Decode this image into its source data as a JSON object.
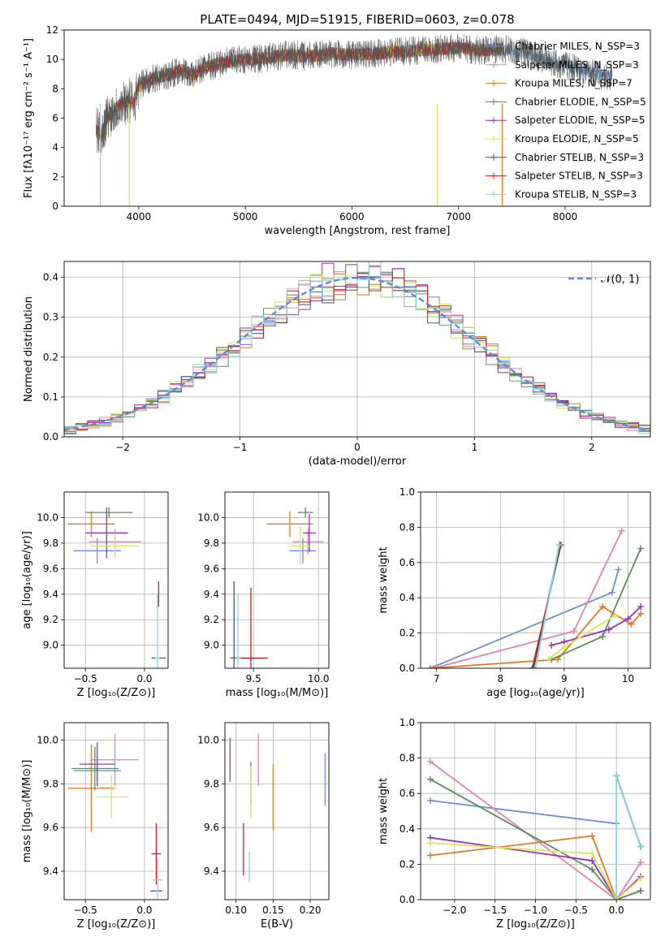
{
  "figure_title": "PLATE=0494, MJD=51915, FIBERID=0603, z=0.078",
  "colors": {
    "ch_miles": "#6a8fd8",
    "sa_miles": "#e57fb3",
    "kr_miles": "#e07820",
    "ch_elodie": "#5a8a60",
    "sa_elodie": "#9b30b8",
    "kr_elodie": "#d9e55a",
    "ch_stelib": "#555555",
    "sa_stelib": "#c02020",
    "kr_stelib": "#80d8e0",
    "gaussian": "#5b8ad6"
  },
  "chart_data": [
    {
      "id": "spectrum",
      "type": "line",
      "title": "PLATE=0494, MJD=51915, FIBERID=0603, z=0.078",
      "xlabel": "wavelength [Angstrom, rest frame]",
      "ylabel": "Flux [fλ10⁻¹⁷ erg cm⁻² s⁻¹ A⁻¹]",
      "xlim": [
        3300,
        8800
      ],
      "ylim": [
        0,
        12
      ],
      "xticks": [
        4000,
        5000,
        6000,
        7000,
        8000
      ],
      "yticks": [
        0,
        2,
        4,
        6,
        8,
        10,
        12
      ],
      "grid": false,
      "legend": "right",
      "data_series": {
        "name": "data",
        "x": [
          3600,
          3650,
          3700,
          3750,
          3800,
          3900,
          3950,
          4000,
          4100,
          4200,
          4300,
          4400,
          4500,
          4600,
          4800,
          5000,
          5200,
          5400,
          5600,
          5800,
          6000,
          6200,
          6400,
          6600,
          6800,
          7000,
          7200,
          7400,
          7600,
          7800,
          8000,
          8200,
          8400
        ],
        "y": [
          5.2,
          4.8,
          6.0,
          6.4,
          6.8,
          7.2,
          7.0,
          8.2,
          8.6,
          8.8,
          9.0,
          9.3,
          8.9,
          9.4,
          9.8,
          10.0,
          10.1,
          10.3,
          10.2,
          10.4,
          10.3,
          10.4,
          10.5,
          10.6,
          10.7,
          10.8,
          10.6,
          10.7,
          10.5,
          10.0,
          9.6,
          9.2,
          8.8
        ]
      },
      "series": [
        {
          "name": "Chabrier MILES, N_SSP=3",
          "color_key": "ch_miles"
        },
        {
          "name": "Salpeter MILES, N_SSP=3",
          "color_key": "sa_miles"
        },
        {
          "name": "Kroupa MILES, N_SSP=7",
          "color_key": "kr_miles"
        },
        {
          "name": "Chabrier ELODIE, N_SSP=5",
          "color_key": "ch_elodie"
        },
        {
          "name": "Salpeter ELODIE, N_SSP=5",
          "color_key": "sa_elodie"
        },
        {
          "name": "Kroupa ELODIE, N_SSP=5",
          "color_key": "kr_elodie"
        },
        {
          "name": "Chabrier STELIB, N_SSP=3",
          "color_key": "ch_stelib"
        },
        {
          "name": "Salpeter STELIB, N_SSP=3",
          "color_key": "sa_stelib"
        },
        {
          "name": "Kroupa STELIB, N_SSP=3",
          "color_key": "kr_stelib"
        }
      ]
    },
    {
      "id": "residuals",
      "type": "line",
      "xlabel": "(data-model)/error",
      "ylabel": "Normed distribution",
      "xlim": [
        -2.5,
        2.5
      ],
      "ylim": [
        0,
        0.44
      ],
      "xticks": [
        -2,
        -1,
        0,
        1,
        2
      ],
      "yticks": [
        0.0,
        0.1,
        0.2,
        0.3,
        0.4
      ],
      "grid": true,
      "legend": "top-right",
      "gaussian_label": "𝒩(0, 1)",
      "bin_width": 0.1
    },
    {
      "id": "age_vs_z",
      "type": "scatter",
      "xlabel": "Z [log₁₀(Z/Z⊙)]",
      "ylabel": "age  [log₁₀(age/yr)]",
      "xlim": [
        -0.68,
        0.2
      ],
      "ylim": [
        8.82,
        10.2
      ],
      "xticks": [
        -0.5,
        0.0
      ],
      "yticks": [
        9.0,
        9.2,
        9.4,
        9.6,
        9.8,
        10.0
      ],
      "grid": true,
      "points": [
        {
          "color_key": "ch_miles",
          "x": -0.4,
          "y": 9.74,
          "xerr": 0.2,
          "yerr": 0.1
        },
        {
          "color_key": "sa_miles",
          "x": -0.25,
          "y": 9.81,
          "xerr": 0.22,
          "yerr": 0.1
        },
        {
          "color_key": "kr_miles",
          "x": -0.45,
          "y": 9.95,
          "xerr": 0.2,
          "yerr": 0.1
        },
        {
          "color_key": "ch_elodie",
          "x": -0.3,
          "y": 10.04,
          "xerr": 0.2,
          "yerr": 0.04
        },
        {
          "color_key": "sa_elodie",
          "x": -0.32,
          "y": 9.88,
          "xerr": 0.18,
          "yerr": 0.2
        },
        {
          "color_key": "kr_elodie",
          "x": -0.25,
          "y": 9.78,
          "xerr": 0.2,
          "yerr": 0.1
        },
        {
          "color_key": "ch_stelib",
          "x": 0.12,
          "y": 8.9,
          "xerr": 0.06,
          "yerr": 0.0
        },
        {
          "color_key": "sa_stelib",
          "x": 0.12,
          "y": 9.4,
          "xerr": 0.0,
          "yerr": 0.1
        },
        {
          "color_key": "kr_stelib",
          "x": 0.11,
          "y": 8.9,
          "xerr": 0.02,
          "yerr": 0.5
        }
      ]
    },
    {
      "id": "age_vs_mass",
      "type": "scatter",
      "xlabel": "mass [log₁₀(M/M⊙)]",
      "ylabel": "",
      "xlim": [
        9.28,
        10.08
      ],
      "ylim": [
        8.82,
        10.2
      ],
      "xticks": [
        9.5,
        10.0
      ],
      "yticks": [
        9.0,
        9.2,
        9.4,
        9.6,
        9.8,
        10.0
      ],
      "grid": true,
      "points": [
        {
          "color_key": "ch_miles",
          "x": 9.88,
          "y": 9.74,
          "xerr": 0.1,
          "yerr": 0.1
        },
        {
          "color_key": "sa_miles",
          "x": 9.92,
          "y": 9.81,
          "xerr": 0.12,
          "yerr": 0.1
        },
        {
          "color_key": "kr_miles",
          "x": 9.78,
          "y": 9.95,
          "xerr": 0.18,
          "yerr": 0.1
        },
        {
          "color_key": "ch_elodie",
          "x": 9.9,
          "y": 10.04,
          "xerr": 0.06,
          "yerr": 0.04
        },
        {
          "color_key": "sa_elodie",
          "x": 9.93,
          "y": 9.88,
          "xerr": 0.05,
          "yerr": 0.15
        },
        {
          "color_key": "kr_elodie",
          "x": 9.86,
          "y": 9.78,
          "xerr": 0.07,
          "yerr": 0.15
        },
        {
          "color_key": "ch_stelib",
          "x": 9.35,
          "y": 8.9,
          "xerr": 0.03,
          "yerr": 0.6
        },
        {
          "color_key": "sa_stelib",
          "x": 9.48,
          "y": 8.9,
          "xerr": 0.13,
          "yerr": 0.55
        },
        {
          "color_key": "kr_stelib",
          "x": 9.38,
          "y": 8.9,
          "xerr": 0.02,
          "yerr": 0.5
        }
      ]
    },
    {
      "id": "weight_vs_age",
      "type": "line",
      "xlabel": "age  [log₁₀(age/yr)]",
      "ylabel": "mass weight",
      "xlim": [
        6.75,
        10.35
      ],
      "ylim": [
        0,
        1
      ],
      "xticks": [
        7,
        8,
        9,
        10
      ],
      "yticks": [
        0.0,
        0.2,
        0.4,
        0.6,
        0.8,
        1.0
      ],
      "grid": true,
      "series": [
        {
          "color_key": "ch_miles",
          "x": [
            6.9,
            9.75,
            9.85
          ],
          "y": [
            0.0,
            0.43,
            0.56
          ]
        },
        {
          "color_key": "sa_miles",
          "x": [
            6.95,
            9.15,
            9.9
          ],
          "y": [
            0.0,
            0.21,
            0.78
          ]
        },
        {
          "color_key": "kr_miles",
          "x": [
            6.9,
            8.9,
            9.6,
            10.05,
            10.2
          ],
          "y": [
            0.0,
            0.05,
            0.35,
            0.25,
            0.31
          ]
        },
        {
          "color_key": "ch_elodie",
          "x": [
            8.8,
            9.6,
            10.2
          ],
          "y": [
            0.05,
            0.18,
            0.68
          ]
        },
        {
          "color_key": "sa_elodie",
          "x": [
            8.8,
            9.0,
            9.7,
            10.0,
            10.2
          ],
          "y": [
            0.13,
            0.15,
            0.22,
            0.28,
            0.35
          ]
        },
        {
          "color_key": "kr_elodie",
          "x": [
            8.75,
            9.0,
            9.8
          ],
          "y": [
            0.05,
            0.12,
            0.3
          ]
        },
        {
          "color_key": "ch_stelib",
          "x": [
            8.5,
            8.95
          ],
          "y": [
            0.0,
            0.7
          ]
        },
        {
          "color_key": "sa_stelib",
          "x": [
            8.52,
            8.93
          ],
          "y": [
            0.0,
            0.7
          ]
        },
        {
          "color_key": "kr_stelib",
          "x": [
            8.55,
            8.92
          ],
          "y": [
            0.0,
            0.7
          ]
        }
      ]
    },
    {
      "id": "mass_vs_z",
      "type": "scatter",
      "xlabel": "Z [log₁₀(Z/Z⊙)]",
      "ylabel": "mass [log₁₀(M/M⊙)]",
      "xlim": [
        -0.68,
        0.2
      ],
      "ylim": [
        9.27,
        10.08
      ],
      "xticks": [
        -0.5,
        0.0
      ],
      "yticks": [
        9.4,
        9.6,
        9.8,
        10.0
      ],
      "grid": true,
      "points": [
        {
          "color_key": "ch_miles",
          "x": -0.4,
          "y": 9.86,
          "xerr": 0.2,
          "yerr": 0.05
        },
        {
          "color_key": "sa_miles",
          "x": -0.25,
          "y": 9.91,
          "xerr": 0.2,
          "yerr": 0.12
        },
        {
          "color_key": "kr_miles",
          "x": -0.45,
          "y": 9.78,
          "xerr": 0.2,
          "yerr": 0.2
        },
        {
          "color_key": "ch_elodie",
          "x": -0.42,
          "y": 9.87,
          "xerr": 0.2,
          "yerr": 0.1
        },
        {
          "color_key": "sa_elodie",
          "x": -0.4,
          "y": 9.89,
          "xerr": 0.15,
          "yerr": 0.1
        },
        {
          "color_key": "kr_elodie",
          "x": -0.28,
          "y": 9.74,
          "xerr": 0.14,
          "yerr": 0.1
        },
        {
          "color_key": "ch_stelib",
          "x": 0.1,
          "y": 9.31,
          "xerr": 0.05,
          "yerr": 0.0
        },
        {
          "color_key": "sa_stelib",
          "x": 0.1,
          "y": 9.48,
          "xerr": 0.04,
          "yerr": 0.14
        },
        {
          "color_key": "kr_stelib",
          "x": 0.11,
          "y": 9.36,
          "xerr": 0.04,
          "yerr": 0.1
        }
      ]
    },
    {
      "id": "mass_vs_ebv",
      "type": "scatter",
      "xlabel": "E(B-V)",
      "ylabel": "",
      "xlim": [
        0.085,
        0.225
      ],
      "ylim": [
        9.27,
        10.08
      ],
      "xticks": [
        0.1,
        0.15,
        0.2
      ],
      "yticks": [
        9.4,
        9.6,
        9.8,
        10.0
      ],
      "grid": true,
      "points": [
        {
          "color_key": "ch_miles",
          "x": 0.22,
          "y": 9.82,
          "xerr": 0,
          "yerr": 0.12
        },
        {
          "color_key": "sa_miles",
          "x": 0.13,
          "y": 9.91,
          "xerr": 0,
          "yerr": 0.12
        },
        {
          "color_key": "kr_miles",
          "x": 0.15,
          "y": 9.74,
          "xerr": 0,
          "yerr": 0.15
        },
        {
          "color_key": "ch_elodie",
          "x": 0.12,
          "y": 9.8,
          "xerr": 0,
          "yerr": 0.1
        },
        {
          "color_key": "sa_elodie",
          "x": 0.092,
          "y": 9.91,
          "xerr": 0,
          "yerr": 0.1
        },
        {
          "color_key": "kr_elodie",
          "x": 0.12,
          "y": 9.76,
          "xerr": 0,
          "yerr": 0.12
        },
        {
          "color_key": "ch_stelib",
          "x": 0.11,
          "y": 9.31,
          "xerr": 0,
          "yerr": 0.0
        },
        {
          "color_key": "sa_stelib",
          "x": 0.11,
          "y": 9.5,
          "xerr": 0,
          "yerr": 0.12
        },
        {
          "color_key": "kr_stelib",
          "x": 0.118,
          "y": 9.42,
          "xerr": 0,
          "yerr": 0.07
        }
      ]
    },
    {
      "id": "weight_vs_z",
      "type": "line",
      "xlabel": "Z [log₁₀(Z/Z⊙)]",
      "ylabel": "mass weight",
      "xlim": [
        -2.42,
        0.42
      ],
      "ylim": [
        0,
        1
      ],
      "xticks": [
        -2.0,
        -1.5,
        -1.0,
        -0.5,
        0.0
      ],
      "yticks": [
        0.0,
        0.2,
        0.4,
        0.6,
        0.8,
        1.0
      ],
      "grid": true,
      "series": [
        {
          "color_key": "ch_miles",
          "x": [
            -2.3,
            0.0
          ],
          "y": [
            0.56,
            0.43
          ]
        },
        {
          "color_key": "sa_miles",
          "x": [
            -2.3,
            0.0,
            0.3
          ],
          "y": [
            0.78,
            0.0,
            0.21
          ]
        },
        {
          "color_key": "kr_miles",
          "x": [
            -2.3,
            -0.3,
            0.0,
            0.3
          ],
          "y": [
            0.25,
            0.36,
            0.0,
            0.05
          ]
        },
        {
          "color_key": "ch_elodie",
          "x": [
            -2.3,
            -0.3,
            0.0,
            0.3
          ],
          "y": [
            0.68,
            0.17,
            0.0,
            0.05
          ]
        },
        {
          "color_key": "sa_elodie",
          "x": [
            -2.3,
            -0.3,
            0.0,
            0.3
          ],
          "y": [
            0.35,
            0.22,
            0.0,
            0.13
          ]
        },
        {
          "color_key": "kr_elodie",
          "x": [
            -2.3,
            -0.3,
            0.0,
            0.3
          ],
          "y": [
            0.32,
            0.26,
            0.0,
            0.12
          ]
        },
        {
          "color_key": "ch_stelib",
          "x": [
            0.0,
            0.3
          ],
          "y": [
            0.7,
            0.3
          ]
        },
        {
          "color_key": "sa_stelib",
          "x": [
            0.0,
            0.3
          ],
          "y": [
            0.7,
            0.3
          ]
        },
        {
          "color_key": "kr_stelib",
          "x": [
            0.0,
            0.0,
            0.3
          ],
          "y": [
            0.0,
            0.7,
            0.3
          ]
        }
      ]
    }
  ]
}
